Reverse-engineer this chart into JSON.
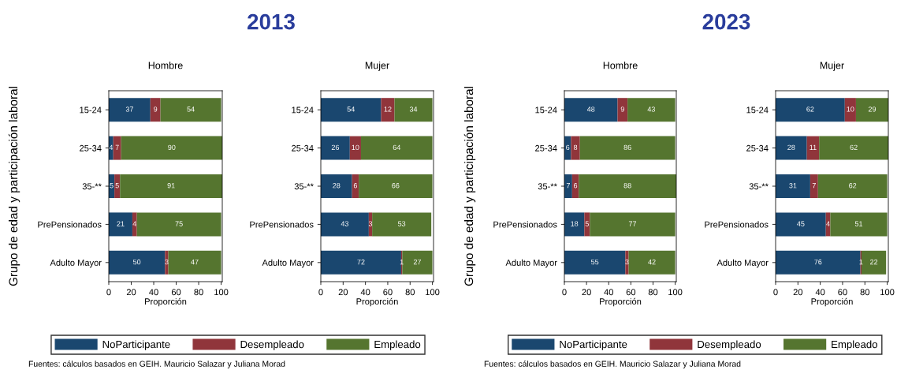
{
  "chart_data": [
    {
      "type": "bar",
      "orientation": "horizontal",
      "stacked": true,
      "title": "Hombre",
      "xlabel": "Proporción",
      "ylabel": "Grupo de edad y participación laboral",
      "annotations": [
        "2013",
        "Fuentes: cálculos basados en GEIH. Mauricio Salazar y Juliana Morad"
      ],
      "categories": [
        "15-24",
        "25-34",
        "35-**",
        "PrePensionados",
        "Adulto Mayor"
      ],
      "xlim": [
        0,
        101
      ],
      "xticks": [
        0,
        20,
        40,
        60,
        80,
        100
      ],
      "data_labels": true,
      "legend": "bottom",
      "grid": false,
      "series": [
        {
          "name": "NoParticipante",
          "color": "#1a476f",
          "values": [
            37,
            4,
            5,
            21,
            50
          ]
        },
        {
          "name": "Desempleado",
          "color": "#90353b",
          "values": [
            9,
            7,
            5,
            4,
            3
          ]
        },
        {
          "name": "Empleado",
          "color": "#55752f",
          "values": [
            54,
            90,
            91,
            75,
            47
          ]
        }
      ]
    },
    {
      "type": "bar",
      "orientation": "horizontal",
      "stacked": true,
      "title": "Mujer",
      "xlabel": "Proporción",
      "categories": [
        "15-24",
        "25-34",
        "35-**",
        "PrePensionados",
        "Adulto Mayor"
      ],
      "xlim": [
        0,
        101
      ],
      "xticks": [
        0,
        20,
        40,
        60,
        80,
        100
      ],
      "data_labels": true,
      "grid": false,
      "series": [
        {
          "color": "#1a476f",
          "values": [
            54,
            26,
            28,
            43,
            72
          ]
        },
        {
          "color": "#90353b",
          "values": [
            12,
            10,
            6,
            3,
            1
          ]
        },
        {
          "color": "#55752f",
          "values": [
            34,
            64,
            66,
            53,
            27
          ]
        }
      ]
    },
    {
      "type": "bar",
      "orientation": "horizontal",
      "stacked": true,
      "title": "Hombre",
      "xlabel": "Proporción",
      "ylabel": "Grupo de edad y participación laboral",
      "annotations": [
        "2023",
        "Fuentes: cálculos basados en GEIH. Mauricio Salazar y Juliana Morad"
      ],
      "categories": [
        "15-24",
        "25-34",
        "35-**",
        "PrePensionados",
        "Adulto Mayor"
      ],
      "xlim": [
        0,
        101
      ],
      "xticks": [
        0,
        20,
        40,
        60,
        80,
        100
      ],
      "data_labels": true,
      "legend": "bottom",
      "grid": false,
      "series": [
        {
          "name": "NoParticipante",
          "color": "#1a476f",
          "values": [
            48,
            6,
            7,
            18,
            55
          ]
        },
        {
          "name": "Desempleado",
          "color": "#90353b",
          "values": [
            9,
            8,
            6,
            5,
            3
          ]
        },
        {
          "name": "Empleado",
          "color": "#55752f",
          "values": [
            43,
            86,
            88,
            77,
            42
          ]
        }
      ]
    },
    {
      "type": "bar",
      "orientation": "horizontal",
      "stacked": true,
      "title": "Mujer",
      "xlabel": "Proporción",
      "categories": [
        "15-24",
        "25-34",
        "35-**",
        "PrePensionados",
        "Adulto Mayor"
      ],
      "xlim": [
        0,
        101
      ],
      "xticks": [
        0,
        20,
        40,
        60,
        80,
        100
      ],
      "data_labels": true,
      "grid": false,
      "series": [
        {
          "color": "#1a476f",
          "values": [
            62,
            28,
            31,
            45,
            76
          ]
        },
        {
          "color": "#90353b",
          "values": [
            10,
            11,
            7,
            4,
            1
          ]
        },
        {
          "color": "#55752f",
          "values": [
            29,
            62,
            62,
            51,
            22
          ]
        }
      ]
    }
  ]
}
